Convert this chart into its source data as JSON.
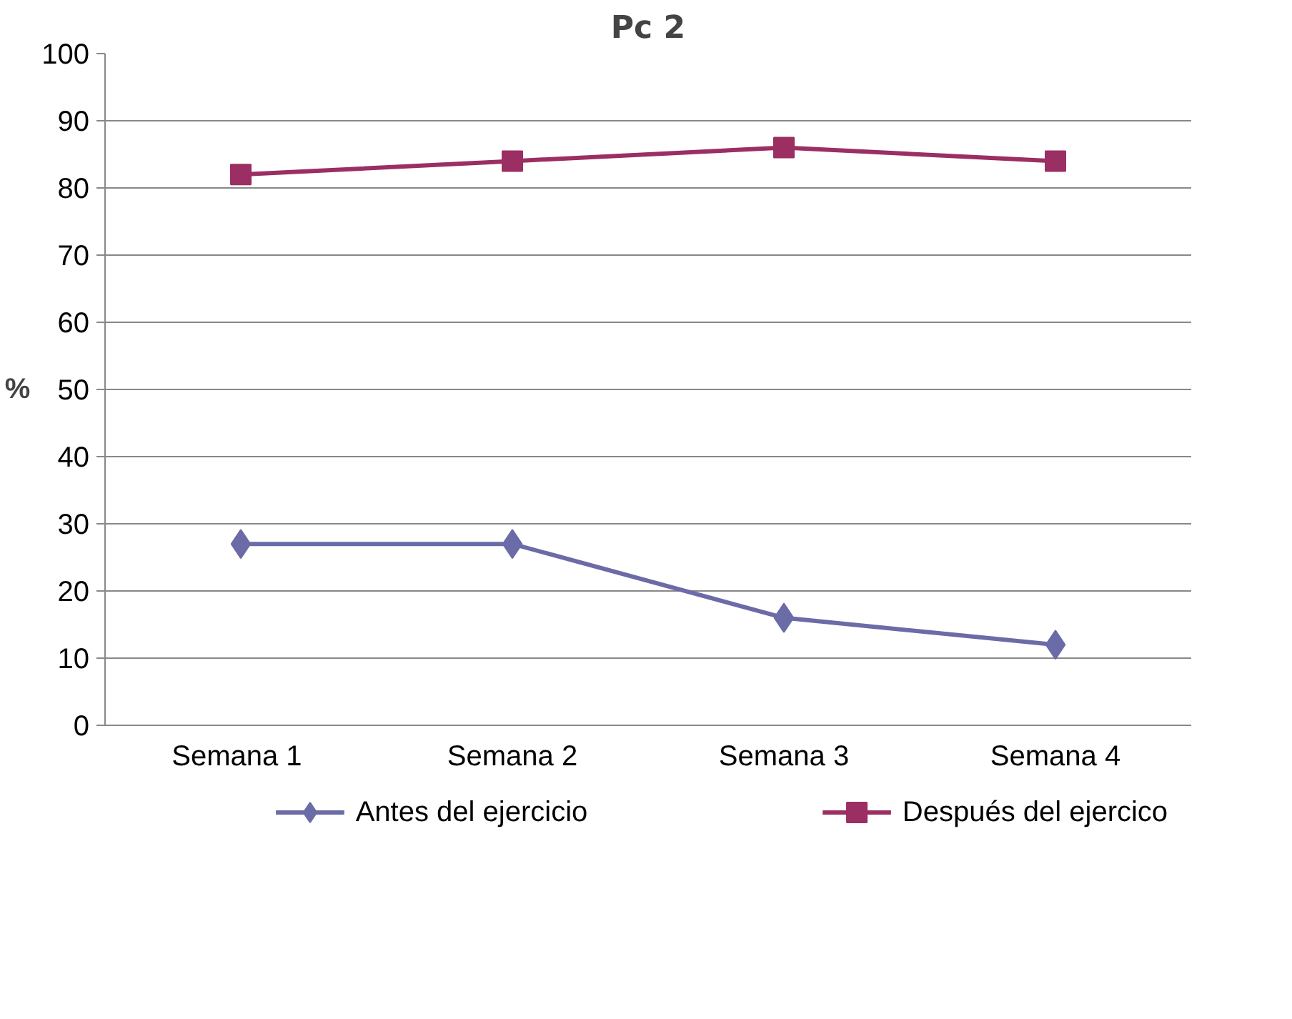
{
  "chart_data": {
    "type": "line",
    "title": "Pc 2",
    "ylabel": "%",
    "categories": [
      "Semana  1",
      "Semana 2",
      "Semana 3",
      "Semana 4"
    ],
    "series": [
      {
        "name": "Antes del ejercicio",
        "color": "#6b6ba8",
        "marker": "diamond",
        "values": [
          27,
          27,
          16,
          12
        ]
      },
      {
        "name": "Después del ejercico",
        "color": "#9b2e62",
        "marker": "square",
        "values": [
          82,
          84,
          86,
          84
        ]
      }
    ],
    "ylim": [
      0,
      100
    ],
    "yticks": [
      0,
      10,
      20,
      30,
      40,
      50,
      60,
      70,
      80,
      90,
      100
    ],
    "grid": "y",
    "legend": "bottom",
    "line_style": "solid"
  }
}
